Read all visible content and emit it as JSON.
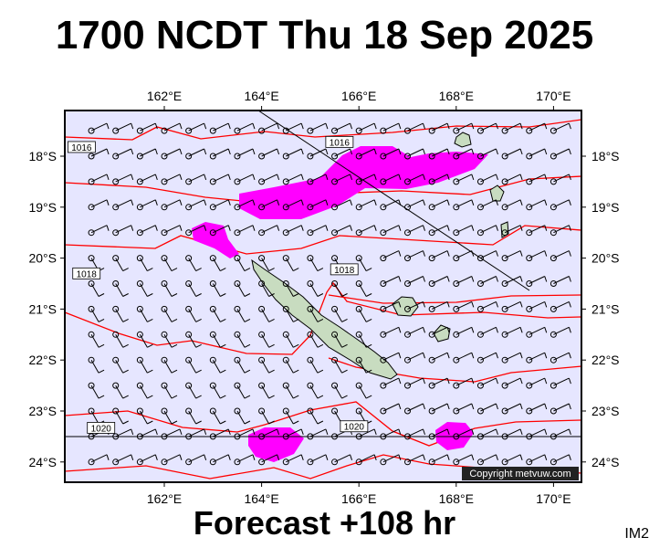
{
  "title": "1700 NCDT Thu 18 Sep 2025",
  "subtitle": "Forecast +108 hr",
  "code": "IM2",
  "copyright": "Copyright metvuw.com",
  "lon_ticks": [
    "162°E",
    "164°E",
    "166°E",
    "168°E",
    "170°E"
  ],
  "lat_ticks": [
    "18°S",
    "19°S",
    "20°S",
    "21°S",
    "22°S",
    "23°S",
    "24°S"
  ],
  "isobar_labels": [
    {
      "text": "1016",
      "lon": 160.3,
      "lat": -17.82
    },
    {
      "text": "1016",
      "lon": 165.6,
      "lat": -17.72
    },
    {
      "text": "1018",
      "lon": 160.4,
      "lat": -20.3
    },
    {
      "text": "1018",
      "lon": 165.7,
      "lat": -20.22
    },
    {
      "text": "1020",
      "lon": 160.7,
      "lat": -23.33
    },
    {
      "text": "1020",
      "lon": 165.9,
      "lat": -23.3
    }
  ],
  "colors": {
    "ocean": "#e6e6ff",
    "isobar": "#ff0000",
    "precip": "#ff00ff",
    "land": "#c8dcc0",
    "wind": "#000000"
  }
}
